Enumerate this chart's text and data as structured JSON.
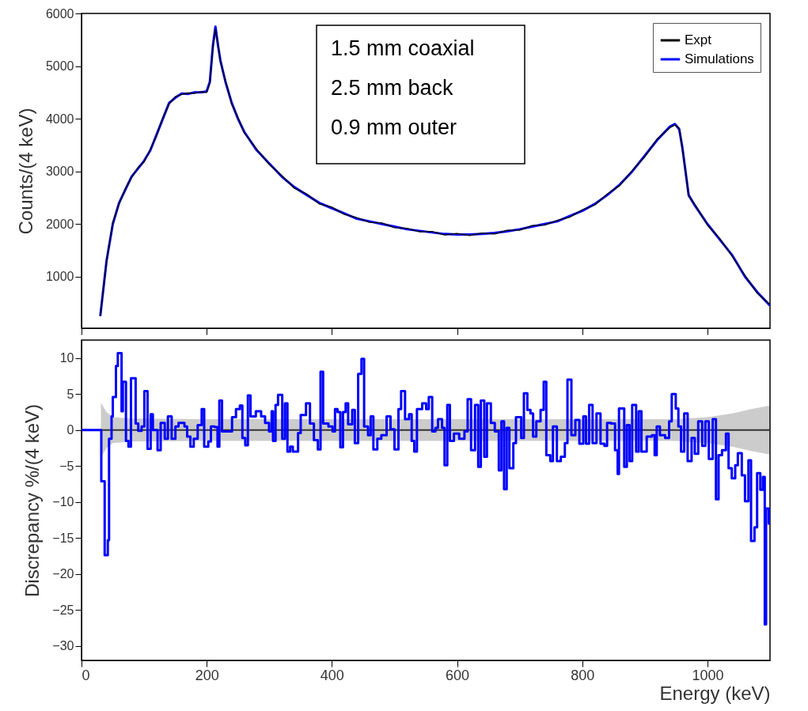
{
  "chart_data": [
    {
      "type": "line",
      "ylabel": "Counts/(4 keV)",
      "legend": "top right",
      "tick_labels": "y",
      "annotations": [
        "1.5 mm coaxial",
        "2.5 mm back",
        "0.9 mm outer"
      ],
      "x": [
        30,
        40,
        50,
        60,
        70,
        80,
        90,
        100,
        110,
        120,
        130,
        140,
        150,
        160,
        170,
        180,
        190,
        200,
        205,
        210,
        214,
        218,
        222,
        230,
        240,
        250,
        260,
        280,
        300,
        320,
        340,
        360,
        380,
        400,
        420,
        440,
        460,
        480,
        500,
        520,
        540,
        560,
        580,
        600,
        620,
        640,
        660,
        680,
        700,
        720,
        740,
        760,
        780,
        800,
        820,
        840,
        860,
        880,
        900,
        920,
        940,
        948,
        955,
        960,
        965,
        970,
        980,
        1000,
        1020,
        1040,
        1060,
        1080,
        1100
      ],
      "series": [
        {
          "name": "Expt",
          "color": "#000000",
          "values": [
            250,
            1280,
            2030,
            2380,
            2670,
            2880,
            3070,
            3180,
            3420,
            3680,
            4020,
            4280,
            4420,
            4460,
            4490,
            4480,
            4510,
            4500,
            4680,
            5350,
            5700,
            5430,
            5080,
            4720,
            4280,
            4020,
            3730,
            3420,
            3130,
            2920,
            2680,
            2570,
            2380,
            2320,
            2180,
            2120,
            2030,
            2020,
            1930,
            1920,
            1850,
            1860,
            1790,
            1820,
            1780,
            1830,
            1810,
            1880,
            1880,
            1970,
            1980,
            2070,
            2130,
            2270,
            2360,
            2570,
            2730,
            3020,
            3280,
            3620,
            3830,
            3880,
            3820,
            3430,
            3020,
            2530,
            2370,
            1980,
            1720,
            1380,
            1020,
            680,
            470
          ]
        },
        {
          "name": "Simulations",
          "color": "#0000ff",
          "values": [
            250,
            1300,
            2000,
            2400,
            2650,
            2900,
            3050,
            3200,
            3400,
            3700,
            4000,
            4300,
            4400,
            4480,
            4470,
            4500,
            4500,
            4520,
            4700,
            5400,
            5750,
            5400,
            5100,
            4700,
            4300,
            4000,
            3750,
            3400,
            3150,
            2900,
            2700,
            2550,
            2400,
            2300,
            2200,
            2100,
            2050,
            2000,
            1950,
            1900,
            1870,
            1840,
            1810,
            1800,
            1800,
            1810,
            1830,
            1860,
            1900,
            1950,
            2000,
            2050,
            2150,
            2250,
            2380,
            2550,
            2750,
            3000,
            3300,
            3600,
            3850,
            3900,
            3800,
            3450,
            3000,
            2550,
            2350,
            2000,
            1700,
            1400,
            1000,
            700,
            450
          ]
        }
      ],
      "xlim": [
        0,
        1100
      ],
      "xticks": [
        0,
        200,
        400,
        600,
        800,
        1000
      ],
      "ylim": [
        20,
        6000
      ],
      "yticks": [
        1000,
        2000,
        3000,
        4000,
        5000,
        6000
      ]
    },
    {
      "type": "step",
      "xlabel": "Energy (keV)",
      "ylabel": "Discrepancy %/(4 keV)",
      "series": [
        {
          "type": "line",
          "color": "#333333",
          "x": [
            31,
            40,
            50,
            80,
            200,
            400,
            600,
            800,
            950,
            1000,
            1040,
            1070,
            1100
          ],
          "values": [
            0,
            0,
            0,
            0,
            0,
            0,
            0,
            0,
            0,
            0,
            0,
            0,
            0
          ],
          "lower": [
            -3.8,
            -2.5,
            -1.8,
            -1.6,
            -1.5,
            -1.5,
            -1.5,
            -1.5,
            -1.5,
            -1.8,
            -2.3,
            -2.9,
            -3.4
          ],
          "upper": [
            3.8,
            2.5,
            1.8,
            1.6,
            1.5,
            1.5,
            1.5,
            1.5,
            1.5,
            1.8,
            2.3,
            2.9,
            3.4
          ]
        },
        {
          "color": "#0000ff",
          "x": [
            0,
            31.6,
            37,
            42,
            44,
            48,
            50,
            55,
            58,
            64,
            66,
            71,
            75,
            79,
            86.5,
            90.7,
            96,
            100.4,
            105.5,
            110.5,
            114,
            121.5,
            126.5,
            133,
            138,
            144,
            150,
            155,
            164.5,
            168.8,
            174,
            179.3,
            185.6,
            192,
            196,
            202.5,
            206.7,
            213,
            217.3,
            220.2,
            224.5,
            240.5,
            246.8,
            253,
            257,
            261.6,
            265.8,
            270,
            278.5,
            287,
            293.3,
            299.6,
            303.8,
            306,
            310,
            314,
            320.7,
            325,
            329,
            333.3,
            337.6,
            346,
            350.2,
            358.7,
            365,
            371.3,
            377.6,
            381.9,
            386,
            394.5,
            401,
            405,
            409,
            413.5,
            417.7,
            422,
            426,
            432.5,
            436.7,
            442,
            447.3,
            451.5,
            457.8,
            462,
            466.3,
            472.6,
            479,
            487.4,
            493.7,
            500,
            506.4,
            510.6,
            516.9,
            523.3,
            527.5,
            531.7,
            535.9,
            544.3,
            550.6,
            554.8,
            560.3,
            565.4,
            569.6,
            576,
            580,
            584.4,
            588.6,
            595,
            603.4,
            611.8,
            616.9,
            622.4,
            628.7,
            633.8,
            638,
            643.5,
            647.7,
            654,
            660.3,
            666.7,
            670.9,
            675.1,
            679.3,
            683.6,
            689.9,
            694.1,
            702.5,
            706.8,
            712.3,
            717.3,
            721.5,
            726.6,
            733.4,
            738.4,
            742.6,
            749,
            753.2,
            759.5,
            765.8,
            772.2,
            776.4,
            782.7,
            789,
            795.4,
            801.7,
            806,
            811,
            816.5,
            822.8,
            829.2,
            835.5,
            839.7,
            846,
            852.4,
            856.6,
            858.7,
            867.1,
            871.3,
            875.6,
            879.8,
            886.1,
            890.3,
            894.6,
            903,
            911.4,
            915.7,
            919,
            924.1,
            932.5,
            938.8,
            943,
            949.4,
            953.6,
            957.9,
            962.9,
            968.4,
            974.7,
            979.8,
            985.3,
            991.6,
            996.7,
            1002.2,
            1008.5,
            1013.6,
            1017.8,
            1023.3,
            1029.6,
            1033.8,
            1038.9,
            1044.4,
            1048.6,
            1054.9,
            1060,
            1065.5,
            1069.7,
            1075.2,
            1079.4,
            1084.5,
            1088.7,
            1091.6,
            1093.7,
            1098,
            1100
          ],
          "values": [
            0,
            -7.1,
            -17.4,
            -15.3,
            -1.2,
            1.9,
            4.6,
            8.9,
            10.7,
            2.6,
            6.7,
            -1.5,
            -2.3,
            7.2,
            0.9,
            -0.1,
            0.5,
            5.4,
            -2.6,
            2.2,
            0,
            -2.8,
            1,
            -1.2,
            1.9,
            -1.2,
            0.5,
            1,
            0.5,
            -0.9,
            -2.3,
            -1.2,
            0.7,
            2.9,
            -2.3,
            -1.6,
            0.5,
            0.4,
            -2.3,
            4.1,
            -0.2,
            1.8,
            2.9,
            3.4,
            -1.1,
            -2.1,
            4.8,
            1.9,
            2.6,
            1.9,
            1,
            -0.2,
            2.6,
            -1.5,
            3.5,
            4.9,
            -1.2,
            3.7,
            -3,
            -2.3,
            -3,
            -0.4,
            2.1,
            3.7,
            0.9,
            -1.4,
            -2.7,
            8.1,
            0.9,
            0.5,
            -0.2,
            2.9,
            2.5,
            -2.4,
            2.5,
            3.7,
            0.8,
            2.8,
            -1.8,
            7.8,
            9.9,
            0.5,
            -0.7,
            1.9,
            -2.7,
            -1.2,
            -0.7,
            1.9,
            0.1,
            -2.7,
            2.9,
            5.4,
            1.5,
            2.2,
            -1.5,
            -3,
            2.9,
            3.7,
            2.9,
            4.6,
            -0.2,
            0.3,
            1.5,
            0.3,
            -4.9,
            3.5,
            -1.5,
            -0.5,
            -1.2,
            -0.2,
            4.3,
            -2.8,
            3.5,
            -5.1,
            4.1,
            -3.7,
            3.7,
            1,
            -0.2,
            -5.6,
            1.2,
            -8.2,
            0.3,
            -5.3,
            -1.8,
            1.8,
            -1.1,
            5.1,
            2.8,
            2.3,
            -0.9,
            1.2,
            2.8,
            6.7,
            -3.5,
            -4.3,
            0.5,
            -4.3,
            -3.7,
            -1.8,
            7,
            -0.7,
            1.4,
            -1.9,
            1.9,
            -1.9,
            3.5,
            -1.8,
            2.3,
            -1.9,
            -2.2,
            1,
            0.9,
            -2.8,
            -6.1,
            3,
            -5.1,
            0.7,
            -4.3,
            3.5,
            -3,
            2.6,
            -3,
            -0.9,
            -0.7,
            -3.5,
            0.5,
            -0.7,
            -1.1,
            1.2,
            5,
            3,
            0.5,
            -3,
            2.3,
            -4.3,
            -1.1,
            -3.3,
            1.2,
            -2.2,
            1.2,
            -4,
            1.5,
            -9.6,
            -3.5,
            -2.8,
            -0.5,
            -5.3,
            -6.7,
            -4.9,
            -3.2,
            -6.3,
            -9.9,
            -4.2,
            -15.4,
            -13.5,
            -6,
            -8.3,
            -6.5,
            -27,
            -10.9,
            -13,
            -13
          ]
        }
      ],
      "xlim": [
        0,
        1100
      ],
      "xticks": [
        0,
        200,
        400,
        600,
        800,
        1000
      ],
      "ylim": [
        -32,
        12.5
      ],
      "yticks": [
        -30,
        -25,
        -20,
        -15,
        -10,
        -5,
        0,
        5,
        10
      ]
    }
  ]
}
